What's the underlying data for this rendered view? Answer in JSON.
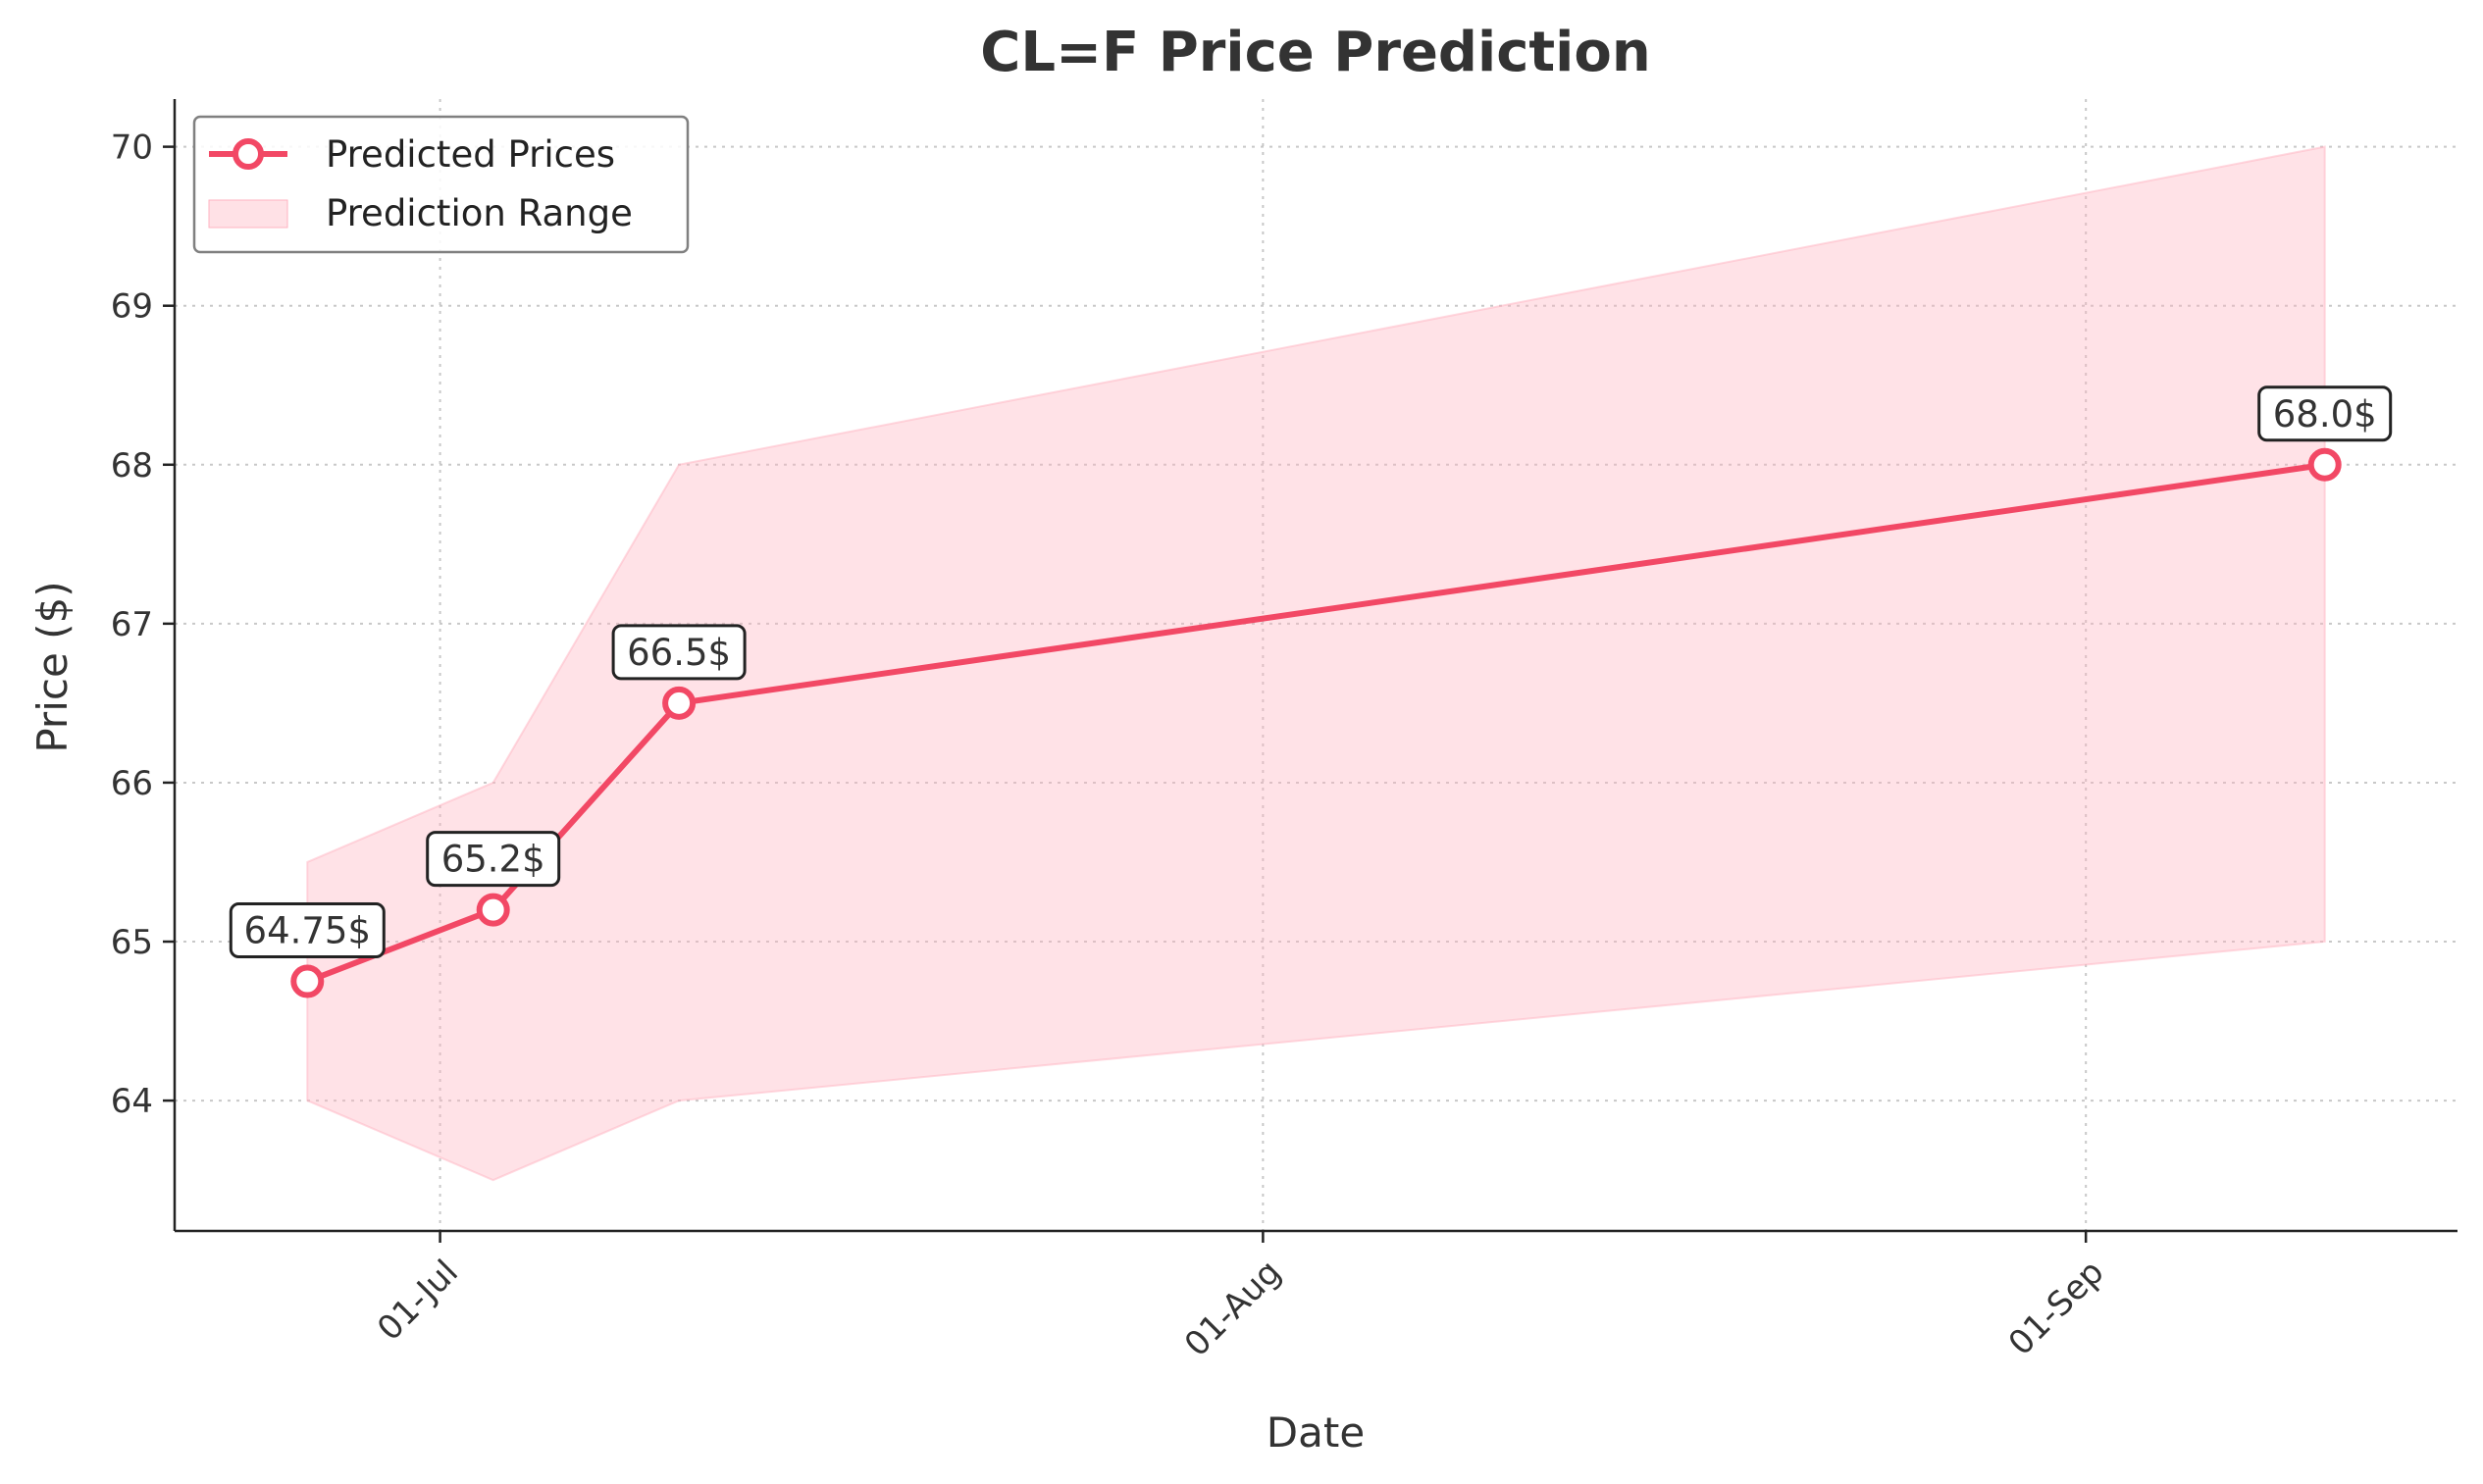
{
  "chart_data": {
    "type": "line",
    "title": "CL=F Price Prediction",
    "xlabel": "Date",
    "ylabel": "Price ($)",
    "x_ticks": [
      "01-Jul",
      "01-Aug",
      "01-Sep"
    ],
    "x_tick_dates": [
      "2024-07-01",
      "2024-08-01",
      "2024-09-01"
    ],
    "x_range": [
      "2024-06-21",
      "2024-09-15"
    ],
    "ylim": [
      63.18,
      70.3
    ],
    "y_ticks": [
      64,
      65,
      66,
      67,
      68,
      69,
      70
    ],
    "grid": true,
    "legend_position": "top-left",
    "series": [
      {
        "name": "Predicted Prices",
        "kind": "line",
        "color": "#f24865",
        "x": [
          "2024-06-26",
          "2024-07-03",
          "2024-07-10",
          "2024-09-10"
        ],
        "values": [
          64.75,
          65.2,
          66.5,
          68.0
        ],
        "labels": [
          "64.75$",
          "65.2$",
          "66.5$",
          "68.0$"
        ]
      },
      {
        "name": "Prediction Range",
        "kind": "band",
        "color": "#ffb3c1",
        "x": [
          "2024-06-26",
          "2024-07-03",
          "2024-07-10",
          "2024-09-10"
        ],
        "lower": [
          64.0,
          63.5,
          64.0,
          65.0
        ],
        "upper": [
          65.5,
          66.0,
          68.0,
          70.0
        ]
      }
    ]
  }
}
